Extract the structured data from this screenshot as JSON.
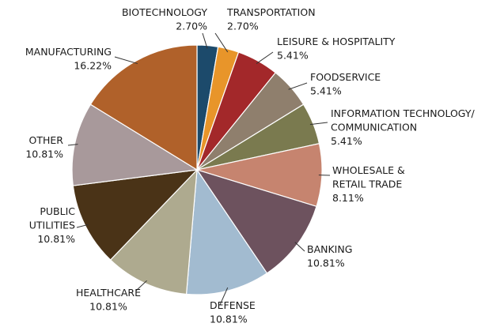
{
  "chart_data": {
    "type": "pie",
    "categories": [
      "BIOTECHNOLOGY",
      "TRANSPORTATION",
      "LEISURE & HOSPITALITY",
      "FOODSERVICE",
      "INFORMATION TECHNOLOGY/\nCOMMUNICATION",
      "WHOLESALE &\nRETAIL TRADE",
      "BANKING",
      "DEFENSE",
      "HEALTHCARE",
      "PUBLIC\nUTILITIES",
      "OTHER",
      "MANUFACTURING"
    ],
    "values": [
      2.7,
      2.7,
      5.41,
      5.41,
      5.41,
      8.11,
      10.81,
      10.81,
      10.81,
      10.81,
      10.81,
      16.22
    ],
    "value_labels": [
      "2.70%",
      "2.70%",
      "5.41%",
      "5.41%",
      "5.41%",
      "8.11%",
      "10.81%",
      "10.81%",
      "10.81%",
      "10.81%",
      "10.81%",
      "16.22%"
    ],
    "colors": [
      "#1c4a6b",
      "#e8952a",
      "#a3282a",
      "#8f7f6d",
      "#7a7a4f",
      "#c6846f",
      "#6d525e",
      "#a2bbd0",
      "#aeaa8f",
      "#4a3317",
      "#a8999b",
      "#b0612a"
    ]
  }
}
